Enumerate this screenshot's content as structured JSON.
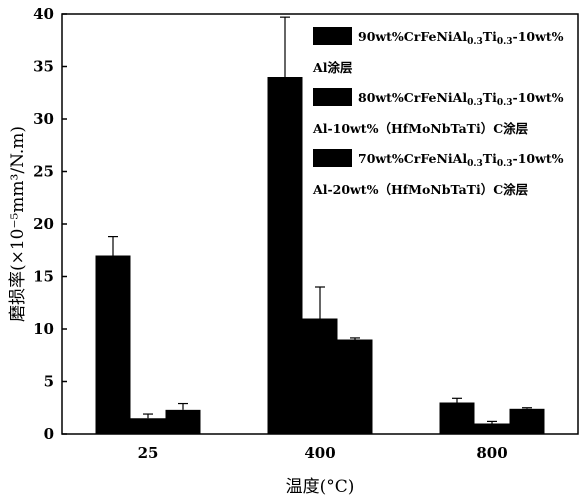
{
  "chart_data": {
    "type": "bar",
    "categories": [
      "25",
      "400",
      "800"
    ],
    "xlabel": "温度(°C)",
    "ylabel": "磨损率(×10⁻⁵mm³/N.m)",
    "ylim": [
      0,
      40
    ],
    "yticks": [
      0,
      5,
      10,
      15,
      20,
      25,
      30,
      35,
      40
    ],
    "grid": false,
    "legend_position": "top-right",
    "bar_color": "#000000",
    "series": [
      {
        "name_line1": "90wt%CrFeNiAl0.3Ti0.3-10wt%",
        "name_line2": "Al涂层",
        "values": [
          17.0,
          34.0,
          3.0
        ],
        "errors": [
          1.8,
          5.7,
          0.4
        ]
      },
      {
        "name_line1": "80wt%CrFeNiAl0.3Ti0.3-10wt%",
        "name_line2": "Al-10wt%（HfMoNbTaTi）C涂层",
        "values": [
          1.5,
          11.0,
          1.0
        ],
        "errors": [
          0.4,
          3.0,
          0.2
        ]
      },
      {
        "name_line1": "70wt%CrFeNiAl0.3Ti0.3-10wt%",
        "name_line2": "Al-20wt%（HfMoNbTaTi）C涂层",
        "values": [
          2.3,
          9.0,
          2.4
        ],
        "errors": [
          0.6,
          0.15,
          0.1
        ]
      }
    ]
  }
}
